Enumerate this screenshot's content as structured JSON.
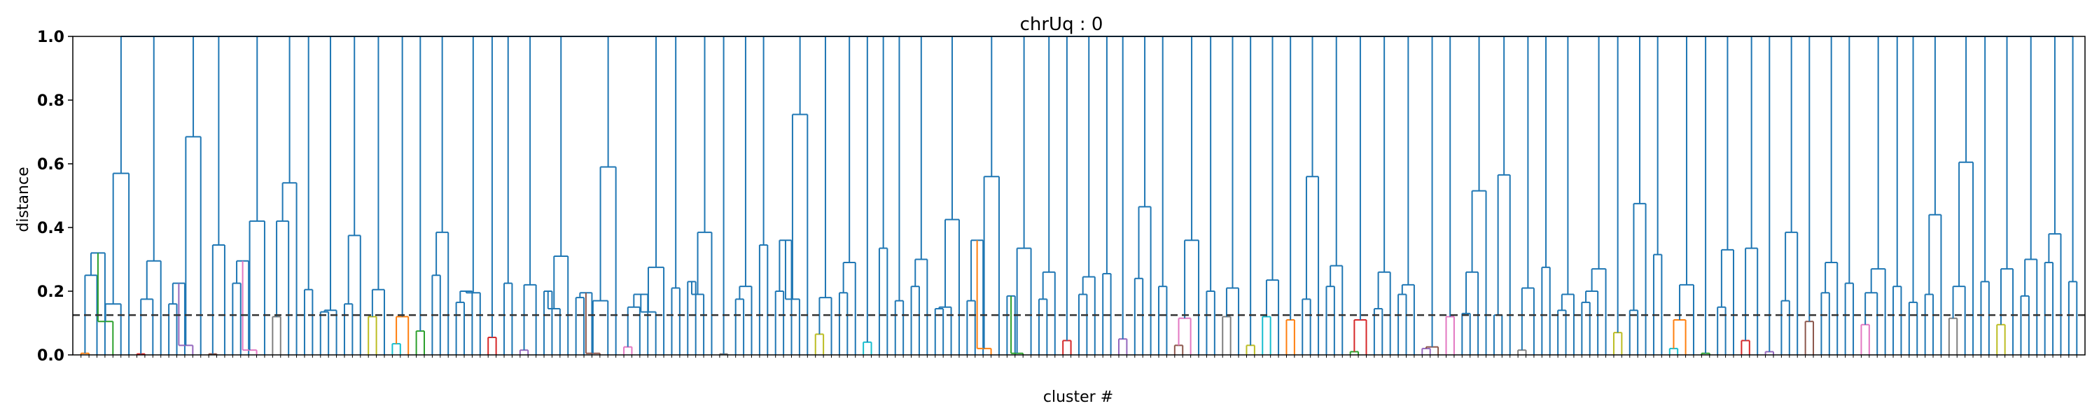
{
  "chart_data": {
    "type": "dendrogram",
    "title": "chrUq : 0",
    "xlabel": "cluster #",
    "ylabel": "distance",
    "ylim": [
      0,
      1.0
    ],
    "yticks": [
      "0.0",
      "0.2",
      "0.4",
      "0.6",
      "0.8",
      "1.0"
    ],
    "threshold": 0.125,
    "threshold_style": "dashed",
    "link_color": "#1f77b4",
    "cluster_colors": [
      "#ff7f0e",
      "#2ca02c",
      "#d62728",
      "#9467bd",
      "#8c564b",
      "#e377c2",
      "#7f7f7f",
      "#bcbd22",
      "#17becf"
    ],
    "root_height": 1.0,
    "groups": [
      [
        0.57,
        0.16,
        0.105,
        0.32,
        0.25,
        0.005
      ],
      [
        0.295,
        0.175,
        0.003
      ],
      [
        0.685,
        0.03,
        0.225,
        0.16
      ],
      [
        0.345,
        0.003
      ],
      [
        0.42,
        0.015,
        0.295,
        0.225
      ],
      [
        0.54,
        0.42,
        0.12
      ],
      [
        0.205
      ],
      [
        0.14,
        0.135
      ],
      [
        0.375,
        0.16
      ],
      [
        0.205,
        0.12
      ],
      [
        0.12,
        0.035
      ],
      [
        0.075
      ],
      [
        0.385,
        0.25
      ],
      [
        0.195,
        0.2,
        0.165
      ],
      [
        0.055
      ],
      [
        0.225
      ],
      [
        0.22,
        0.015
      ],
      [
        0.31,
        0.145,
        0.2
      ],
      [
        0.59,
        0.17,
        0.005,
        0.195,
        0.18
      ],
      [
        0.275,
        0.135,
        0.19,
        0.15,
        0.025
      ],
      [
        0.21
      ],
      [
        0.385,
        0.19,
        0.23
      ],
      [
        0.003
      ],
      [
        0.215,
        0.175
      ],
      [
        0.345
      ],
      [
        0.755,
        0.175,
        0.36,
        0.2
      ],
      [
        0.18,
        0.065
      ],
      [
        0.29,
        0.195
      ],
      [
        0.04
      ],
      [
        0.335
      ],
      [
        0.17
      ],
      [
        0.3,
        0.215
      ],
      [
        0.425,
        0.15,
        0.145
      ],
      [
        0.56,
        0.02,
        0.36,
        0.17
      ],
      [
        0.335,
        0.005,
        0.185
      ],
      [
        0.26,
        0.175
      ],
      [
        0.045
      ],
      [
        0.245,
        0.19
      ],
      [
        0.255
      ],
      [
        0.05
      ],
      [
        0.465,
        0.24
      ],
      [
        0.215
      ],
      [
        0.36,
        0.115,
        0.03
      ],
      [
        0.2
      ],
      [
        0.21,
        0.12
      ],
      [
        0.03
      ],
      [
        0.235,
        0.12
      ],
      [
        0.11
      ],
      [
        0.56,
        0.175
      ],
      [
        0.28,
        0.215
      ],
      [
        0.11,
        0.01
      ],
      [
        0.26,
        0.145
      ],
      [
        0.22,
        0.19
      ],
      [
        0.025,
        0.02
      ],
      [
        0.12
      ],
      [
        0.515,
        0.26,
        0.13
      ],
      [
        0.565,
        0.125
      ],
      [
        0.21,
        0.015
      ],
      [
        0.275
      ],
      [
        0.19,
        0.14
      ],
      [
        0.27,
        0.2,
        0.165
      ],
      [
        0.07
      ],
      [
        0.475,
        0.14
      ],
      [
        0.315
      ],
      [
        0.22,
        0.11,
        0.02
      ],
      [
        0.005
      ],
      [
        0.33,
        0.15
      ],
      [
        0.335,
        0.045
      ],
      [
        0.01
      ],
      [
        0.385,
        0.17
      ],
      [
        0.105
      ],
      [
        0.29,
        0.195
      ],
      [
        0.225
      ],
      [
        0.27,
        0.195,
        0.095
      ],
      [
        0.215
      ],
      [
        0.165
      ],
      [
        0.44,
        0.19
      ],
      [
        0.605,
        0.215,
        0.115
      ],
      [
        0.23
      ],
      [
        0.27,
        0.095
      ],
      [
        0.3,
        0.185
      ],
      [
        0.38,
        0.29
      ],
      [
        0.23
      ]
    ]
  }
}
